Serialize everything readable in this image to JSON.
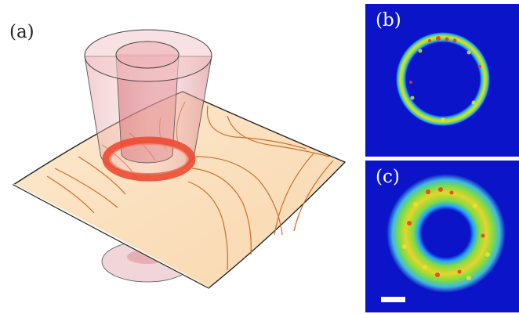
{
  "figure": {
    "panels": [
      {
        "label": "(a)"
      },
      {
        "label": "(b)"
      },
      {
        "label": "(c)"
      }
    ]
  },
  "colors": {
    "surface_fill": "#fce3c3",
    "contour_line": "#c8702a",
    "cylinder": "#d98a8e",
    "ring": "#ec4a32",
    "intensity_background": "#0b14c8"
  }
}
